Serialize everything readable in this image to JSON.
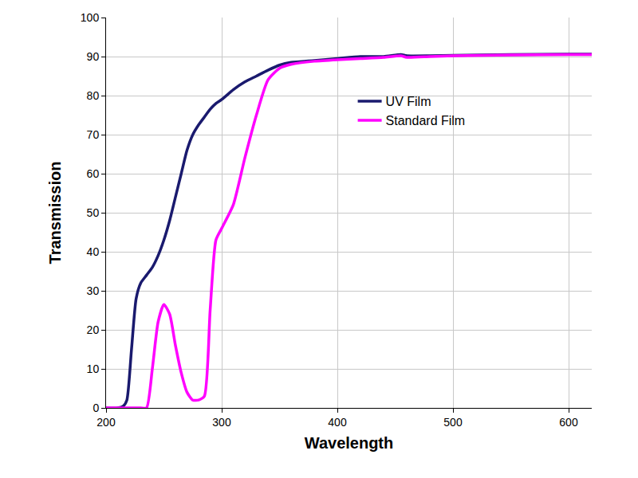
{
  "chart_data": {
    "type": "line",
    "x_label": "Wavelength",
    "y_label": "Transmission",
    "x": [
      200,
      210,
      215,
      218,
      222,
      226,
      230,
      235,
      240,
      245,
      250,
      255,
      260,
      265,
      270,
      275,
      280,
      285,
      290,
      295,
      300,
      310,
      320,
      330,
      340,
      350,
      360,
      380,
      400,
      420,
      440,
      455,
      460,
      480,
      500,
      550,
      600,
      620
    ],
    "series": [
      {
        "name": "UV Film",
        "color": "#1a1a6e",
        "values": [
          0,
          0,
          0.5,
          2,
          15,
          28,
          32,
          34,
          36,
          39,
          43,
          48,
          54,
          60,
          66,
          70,
          72.5,
          74.5,
          76.5,
          78,
          79,
          81.5,
          83.5,
          85,
          86.5,
          87.8,
          88.5,
          89,
          89.5,
          90,
          90,
          90.5,
          90.2,
          90.2,
          90.3,
          90.5,
          90.6,
          90.6
        ]
      },
      {
        "name": "Standard Film",
        "color": "#ff00ff",
        "values": [
          0,
          0,
          0,
          0,
          0,
          0,
          0,
          0,
          10,
          22,
          26.5,
          24,
          16,
          9,
          4,
          2,
          2,
          3,
          25,
          43,
          46,
          52,
          64,
          75,
          84,
          87,
          88,
          88.8,
          89.2,
          89.5,
          89.8,
          90.2,
          89.8,
          90,
          90.2,
          90.4,
          90.5,
          90.5
        ]
      }
    ],
    "xlim": [
      200,
      620
    ],
    "xticks": [
      200,
      300,
      400,
      500,
      600
    ],
    "ylim": [
      0,
      100
    ],
    "yticks": [
      0,
      10,
      20,
      30,
      40,
      50,
      60,
      70,
      80,
      90,
      100
    ],
    "grid": true,
    "legend": "upper right"
  }
}
